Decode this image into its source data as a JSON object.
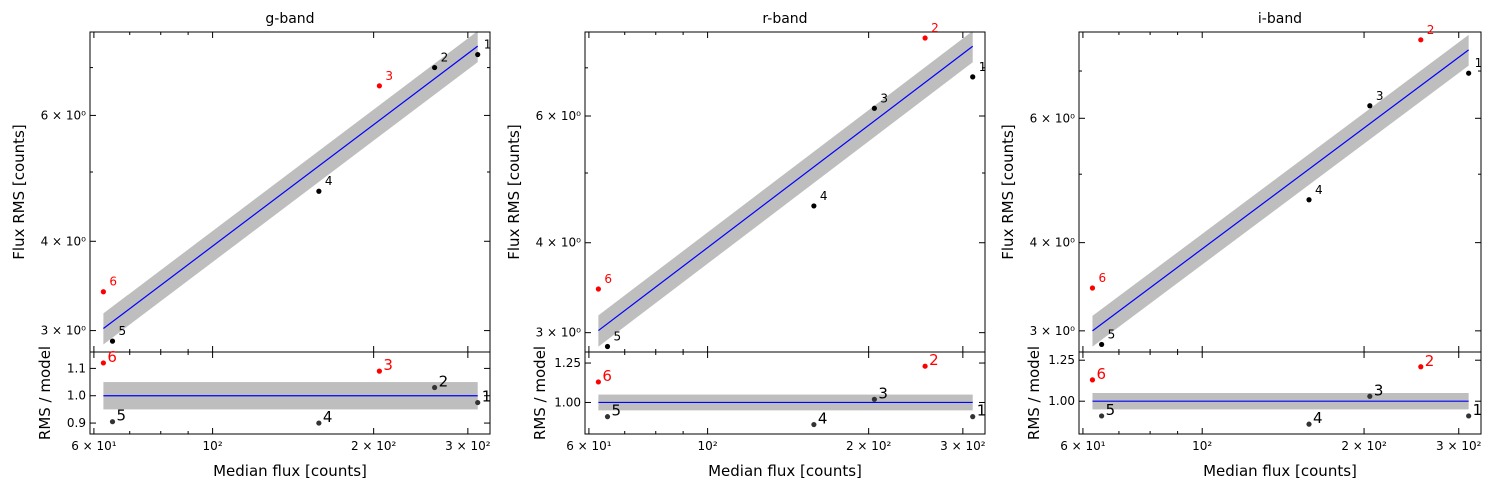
{
  "chart_data": [
    {
      "type": "scatter",
      "title": "g-band",
      "xlabel": "Median flux [counts]",
      "ylabel_top": "Flux RMS [counts]",
      "ylabel_bottom": "RMS / model",
      "xscale": "log",
      "yscale_top": "log",
      "xlim": [
        59,
        330
      ],
      "ylim_top": [
        2.8,
        7.85
      ],
      "ylim_bottom": [
        0.86,
        1.16
      ],
      "x_ticks": [
        {
          "value": 60,
          "label": "6 × 10¹"
        },
        {
          "value": 100,
          "label": "10²"
        },
        {
          "value": 200,
          "label": "2 × 10²"
        },
        {
          "value": 300,
          "label": "3 × 10²"
        }
      ],
      "y_ticks_top": [
        {
          "value": 3,
          "label": "3 × 10⁰"
        },
        {
          "value": 4,
          "label": "4 × 10⁰"
        },
        {
          "value": 6,
          "label": "6 × 10⁰"
        }
      ],
      "y_ticks_bottom": [
        {
          "value": 0.9,
          "label": "0.9"
        },
        {
          "value": 1.0,
          "label": "1.0"
        },
        {
          "value": 1.1,
          "label": "1.1"
        }
      ],
      "fit": {
        "x": [
          62.5,
          313
        ],
        "y": [
          3.02,
          7.5
        ],
        "band_ratio": 0.05,
        "color": "#0000ff",
        "band_color": "#bebebe"
      },
      "points": [
        {
          "label": "1",
          "x": 313,
          "y": 7.3,
          "ratio": 0.975,
          "outlier": false
        },
        {
          "label": "2",
          "x": 260,
          "y": 7.0,
          "ratio": 1.03,
          "outlier": false
        },
        {
          "label": "3",
          "x": 205,
          "y": 6.6,
          "ratio": 1.09,
          "outlier": true
        },
        {
          "label": "4",
          "x": 158,
          "y": 4.7,
          "ratio": 0.9,
          "outlier": false
        },
        {
          "label": "5",
          "x": 65,
          "y": 2.9,
          "ratio": 0.905,
          "outlier": false
        },
        {
          "label": "6",
          "x": 62.5,
          "y": 3.4,
          "ratio": 1.12,
          "outlier": true
        }
      ]
    },
    {
      "type": "scatter",
      "title": "r-band",
      "xlabel": "Median flux [counts]",
      "ylabel_top": "Flux RMS [counts]",
      "ylabel_bottom": "RMS / model",
      "xscale": "log",
      "yscale_top": "log",
      "xlim": [
        59,
        330
      ],
      "ylim_top": [
        2.82,
        7.85
      ],
      "ylim_bottom": [
        0.8,
        1.32
      ],
      "x_ticks": [
        {
          "value": 60,
          "label": "6 × 10¹"
        },
        {
          "value": 100,
          "label": "10²"
        },
        {
          "value": 200,
          "label": "2 × 10²"
        },
        {
          "value": 300,
          "label": "3 × 10²"
        }
      ],
      "y_ticks_top": [
        {
          "value": 3,
          "label": "3 × 10⁰"
        },
        {
          "value": 4,
          "label": "4 × 10⁰"
        },
        {
          "value": 6,
          "label": "6 × 10⁰"
        }
      ],
      "y_ticks_bottom": [
        {
          "value": 1.0,
          "label": "1.00"
        },
        {
          "value": 1.25,
          "label": "1.25"
        }
      ],
      "fit": {
        "x": [
          62.5,
          313
        ],
        "y": [
          3.02,
          7.5
        ],
        "band_ratio": 0.05,
        "color": "#0000ff",
        "band_color": "#bebebe"
      },
      "points": [
        {
          "label": "1",
          "x": 313,
          "y": 6.8,
          "ratio": 0.91,
          "outlier": false
        },
        {
          "label": "2",
          "x": 255,
          "y": 7.7,
          "ratio": 1.23,
          "outlier": true
        },
        {
          "label": "3",
          "x": 205,
          "y": 6.15,
          "ratio": 1.02,
          "outlier": false
        },
        {
          "label": "4",
          "x": 158,
          "y": 4.5,
          "ratio": 0.86,
          "outlier": false
        },
        {
          "label": "5",
          "x": 65,
          "y": 2.87,
          "ratio": 0.91,
          "outlier": false
        },
        {
          "label": "6",
          "x": 62.5,
          "y": 3.45,
          "ratio": 1.13,
          "outlier": true
        }
      ]
    },
    {
      "type": "scatter",
      "title": "i-band",
      "xlabel": "Median flux [counts]",
      "ylabel_top": "Flux RMS [counts]",
      "ylabel_bottom": "RMS / model",
      "xscale": "log",
      "yscale_top": "log",
      "xlim": [
        59,
        330
      ],
      "ylim_top": [
        2.8,
        7.95
      ],
      "ylim_bottom": [
        0.8,
        1.3
      ],
      "x_ticks": [
        {
          "value": 60,
          "label": "6 × 10¹"
        },
        {
          "value": 100,
          "label": "10²"
        },
        {
          "value": 200,
          "label": "2 × 10²"
        },
        {
          "value": 300,
          "label": "3 × 10²"
        }
      ],
      "y_ticks_top": [
        {
          "value": 3,
          "label": "3 × 10⁰"
        },
        {
          "value": 4,
          "label": "4 × 10⁰"
        },
        {
          "value": 6,
          "label": "6 × 10⁰"
        }
      ],
      "y_ticks_bottom": [
        {
          "value": 1.0,
          "label": "1.00"
        },
        {
          "value": 1.25,
          "label": "1.25"
        }
      ],
      "fit": {
        "x": [
          62.5,
          313
        ],
        "y": [
          3.0,
          7.5
        ],
        "band_ratio": 0.05,
        "color": "#0000ff",
        "band_color": "#bebebe"
      },
      "points": [
        {
          "label": "1",
          "x": 313,
          "y": 6.95,
          "ratio": 0.91,
          "outlier": false
        },
        {
          "label": "2",
          "x": 255,
          "y": 7.75,
          "ratio": 1.21,
          "outlier": true
        },
        {
          "label": "3",
          "x": 205,
          "y": 6.25,
          "ratio": 1.03,
          "outlier": false
        },
        {
          "label": "4",
          "x": 158,
          "y": 4.6,
          "ratio": 0.86,
          "outlier": false
        },
        {
          "label": "5",
          "x": 65,
          "y": 2.87,
          "ratio": 0.91,
          "outlier": false
        },
        {
          "label": "6",
          "x": 62.5,
          "y": 3.45,
          "ratio": 1.13,
          "outlier": true
        }
      ]
    }
  ]
}
